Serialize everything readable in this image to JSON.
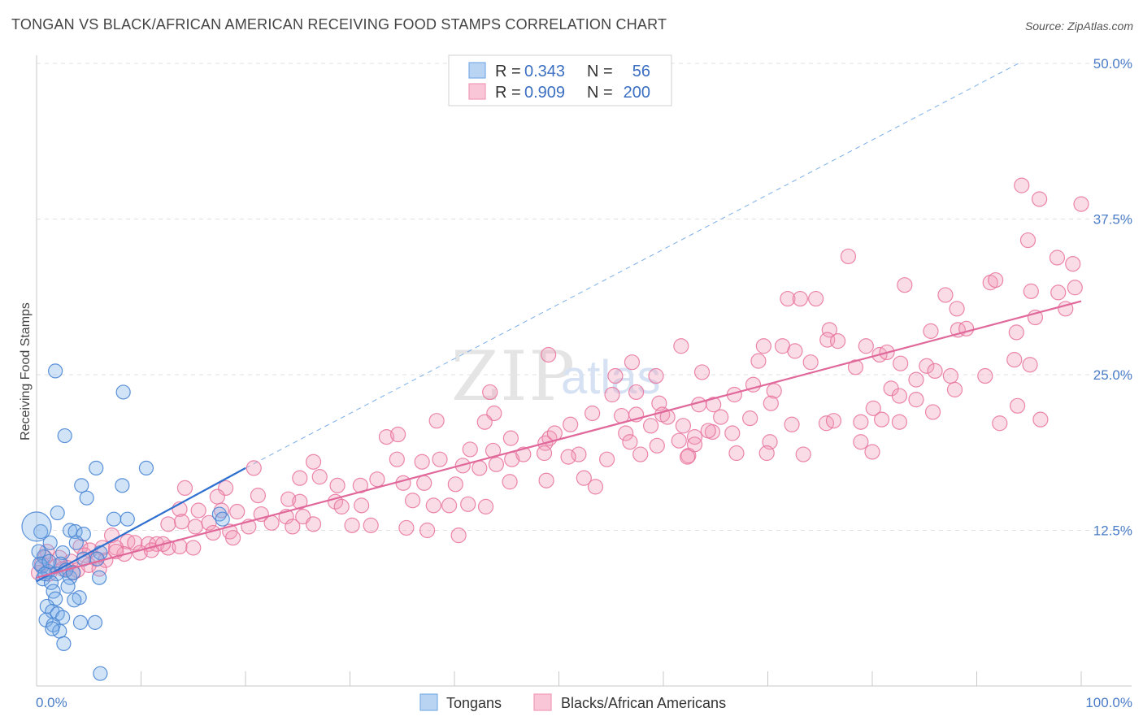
{
  "title": "TONGAN VS BLACK/AFRICAN AMERICAN RECEIVING FOOD STAMPS CORRELATION CHART",
  "source": "Source: ZipAtlas.com",
  "watermark": {
    "zip": "ZIP",
    "atlas": "atlas"
  },
  "legend": {
    "rows": [
      {
        "r_label": "R =",
        "r_value": "0.343",
        "n_label": "N =",
        "n_value": "56",
        "color": "#7aaee8"
      },
      {
        "r_label": "R =",
        "r_value": "0.909",
        "n_label": "N =",
        "n_value": "200",
        "color": "#f19ab8"
      }
    ]
  },
  "bottom_legend": [
    {
      "label": "Tongans",
      "color": "#7aaee8"
    },
    {
      "label": "Blacks/African Americans",
      "color": "#f19ab8"
    }
  ],
  "colors": {
    "blue": "#4a86d4",
    "pink": "#e8729c",
    "blue_line": "#2e6fd0",
    "pink_line": "#e0689a",
    "grid": "#e0e0e0"
  },
  "chart_data": {
    "type": "scatter",
    "ylabel": "Receiving Food Stamps",
    "xlabel": "",
    "xlim": [
      0,
      100
    ],
    "ylim": [
      0,
      50
    ],
    "x_ticks": [
      "0.0%",
      "100.0%"
    ],
    "y_ticks": [
      {
        "value": 12.5,
        "label": "12.5%"
      },
      {
        "value": 25,
        "label": "25.0%"
      },
      {
        "value": 37.5,
        "label": "37.5%"
      },
      {
        "value": 50,
        "label": "50.0%"
      }
    ],
    "grid": true,
    "legend_position": "top-center",
    "series": [
      {
        "name": "Tongans",
        "R": 0.343,
        "N": 56,
        "trend": {
          "x": [
            0,
            20
          ],
          "y": [
            8.4,
            17.5
          ],
          "extended_y_at_x_94": 50
        },
        "points": [
          [
            1.8,
            25.3
          ],
          [
            8.3,
            23.6
          ],
          [
            2.7,
            20.1
          ],
          [
            5.7,
            17.5
          ],
          [
            10.5,
            17.5
          ],
          [
            4.3,
            16.1
          ],
          [
            8.2,
            16.1
          ],
          [
            4.8,
            15.1
          ],
          [
            2.0,
            13.9
          ],
          [
            7.4,
            13.4
          ],
          [
            8.7,
            13.4
          ],
          [
            17.5,
            13.8
          ],
          [
            3.2,
            12.5
          ],
          [
            3.7,
            12.4
          ],
          [
            4.5,
            12.2
          ],
          [
            0.4,
            12.4
          ],
          [
            1.3,
            11.5
          ],
          [
            3.8,
            11.5
          ],
          [
            2.5,
            10.7
          ],
          [
            6.1,
            10.7
          ],
          [
            0.7,
            10.4
          ],
          [
            4.5,
            10.2
          ],
          [
            5.8,
            10.2
          ],
          [
            2.3,
            9.8
          ],
          [
            0.5,
            9.6
          ],
          [
            1.1,
            9.2
          ],
          [
            1.9,
            9.0
          ],
          [
            3.2,
            8.7
          ],
          [
            6.0,
            8.7
          ],
          [
            0.6,
            8.6
          ],
          [
            1.4,
            8.3
          ],
          [
            3.0,
            8.0
          ],
          [
            1.6,
            7.6
          ],
          [
            4.1,
            7.1
          ],
          [
            1.8,
            7.0
          ],
          [
            3.6,
            6.9
          ],
          [
            1.0,
            6.4
          ],
          [
            1.5,
            6.0
          ],
          [
            2.0,
            5.8
          ],
          [
            2.5,
            5.5
          ],
          [
            0.9,
            5.3
          ],
          [
            4.2,
            5.1
          ],
          [
            5.6,
            5.1
          ],
          [
            1.6,
            4.9
          ],
          [
            2.2,
            4.4
          ],
          [
            1.5,
            4.6
          ],
          [
            2.6,
            3.4
          ],
          [
            6.1,
            1.0
          ],
          [
            0.3,
            9.8
          ],
          [
            0.8,
            9.0
          ],
          [
            2.8,
            9.3
          ],
          [
            1.2,
            10.0
          ],
          [
            3.5,
            9.1
          ],
          [
            17.8,
            13.4
          ],
          [
            0.2,
            10.8
          ],
          [
            0.0,
            12.8
          ]
        ]
      },
      {
        "name": "Blacks/African Americans",
        "R": 0.909,
        "N": 200,
        "trend": {
          "x": [
            0,
            100
          ],
          "y": [
            8.7,
            30.9
          ]
        },
        "points": [
          [
            94.3,
            40.2
          ],
          [
            96.0,
            39.1
          ],
          [
            100.0,
            38.7
          ],
          [
            94.9,
            35.8
          ],
          [
            97.7,
            34.4
          ],
          [
            99.2,
            33.9
          ],
          [
            77.7,
            34.5
          ],
          [
            91.3,
            32.4
          ],
          [
            91.8,
            32.6
          ],
          [
            95.2,
            31.7
          ],
          [
            97.8,
            31.6
          ],
          [
            99.4,
            32.0
          ],
          [
            83.1,
            32.2
          ],
          [
            87.0,
            31.4
          ],
          [
            71.9,
            31.1
          ],
          [
            73.1,
            31.1
          ],
          [
            74.6,
            31.1
          ],
          [
            88.1,
            30.3
          ],
          [
            95.6,
            29.6
          ],
          [
            98.5,
            30.3
          ],
          [
            75.9,
            28.6
          ],
          [
            85.6,
            28.5
          ],
          [
            88.2,
            28.6
          ],
          [
            89.0,
            28.7
          ],
          [
            93.8,
            28.4
          ],
          [
            75.7,
            27.8
          ],
          [
            76.7,
            27.7
          ],
          [
            79.4,
            27.3
          ],
          [
            61.7,
            27.3
          ],
          [
            69.6,
            27.3
          ],
          [
            71.4,
            27.3
          ],
          [
            72.6,
            26.9
          ],
          [
            80.7,
            26.6
          ],
          [
            81.4,
            26.8
          ],
          [
            49.0,
            26.6
          ],
          [
            57.0,
            26.0
          ],
          [
            69.1,
            26.1
          ],
          [
            74.1,
            26.0
          ],
          [
            78.4,
            25.6
          ],
          [
            82.7,
            25.9
          ],
          [
            85.2,
            25.7
          ],
          [
            86.0,
            25.3
          ],
          [
            93.6,
            26.2
          ],
          [
            95.1,
            25.8
          ],
          [
            63.7,
            25.2
          ],
          [
            55.4,
            24.9
          ],
          [
            59.3,
            24.9
          ],
          [
            68.6,
            24.2
          ],
          [
            84.2,
            24.6
          ],
          [
            87.5,
            24.9
          ],
          [
            90.8,
            24.9
          ],
          [
            43.4,
            23.6
          ],
          [
            55.1,
            23.4
          ],
          [
            57.4,
            23.6
          ],
          [
            66.8,
            23.4
          ],
          [
            70.6,
            23.7
          ],
          [
            81.8,
            23.9
          ],
          [
            82.6,
            23.3
          ],
          [
            87.9,
            23.8
          ],
          [
            59.6,
            22.7
          ],
          [
            63.4,
            22.6
          ],
          [
            64.8,
            22.6
          ],
          [
            70.3,
            22.7
          ],
          [
            80.1,
            22.3
          ],
          [
            84.2,
            23.0
          ],
          [
            85.8,
            22.0
          ],
          [
            93.9,
            22.5
          ],
          [
            53.2,
            21.9
          ],
          [
            59.9,
            21.8
          ],
          [
            60.4,
            21.6
          ],
          [
            65.5,
            21.6
          ],
          [
            68.3,
            21.5
          ],
          [
            75.6,
            21.1
          ],
          [
            80.9,
            21.4
          ],
          [
            92.2,
            21.1
          ],
          [
            96.1,
            21.4
          ],
          [
            43.8,
            21.9
          ],
          [
            56.0,
            21.7
          ],
          [
            57.4,
            21.8
          ],
          [
            58.8,
            20.9
          ],
          [
            61.9,
            20.9
          ],
          [
            64.7,
            20.4
          ],
          [
            72.3,
            21.0
          ],
          [
            76.3,
            21.3
          ],
          [
            78.9,
            21.2
          ],
          [
            82.6,
            21.2
          ],
          [
            38.3,
            21.3
          ],
          [
            42.9,
            21.2
          ],
          [
            51.1,
            21.0
          ],
          [
            56.4,
            20.3
          ],
          [
            63.0,
            20.0
          ],
          [
            64.3,
            20.5
          ],
          [
            66.6,
            20.3
          ],
          [
            33.5,
            20.0
          ],
          [
            34.6,
            20.2
          ],
          [
            45.4,
            19.9
          ],
          [
            48.7,
            19.5
          ],
          [
            49.1,
            19.9
          ],
          [
            49.6,
            20.3
          ],
          [
            56.8,
            19.6
          ],
          [
            61.5,
            19.7
          ],
          [
            63.0,
            19.4
          ],
          [
            70.2,
            19.6
          ],
          [
            78.9,
            19.6
          ],
          [
            41.5,
            19.0
          ],
          [
            43.7,
            18.9
          ],
          [
            45.5,
            18.2
          ],
          [
            46.6,
            18.6
          ],
          [
            48.6,
            18.7
          ],
          [
            51.9,
            18.6
          ],
          [
            62.4,
            18.5
          ],
          [
            69.9,
            18.7
          ],
          [
            80.0,
            18.8
          ],
          [
            26.5,
            18.0
          ],
          [
            34.5,
            18.2
          ],
          [
            36.9,
            18.0
          ],
          [
            38.6,
            18.2
          ],
          [
            40.8,
            17.7
          ],
          [
            42.4,
            17.5
          ],
          [
            44.0,
            17.8
          ],
          [
            50.9,
            18.4
          ],
          [
            54.6,
            18.2
          ],
          [
            57.8,
            18.6
          ],
          [
            59.4,
            19.3
          ],
          [
            62.3,
            18.4
          ],
          [
            67.0,
            18.7
          ],
          [
            73.4,
            18.6
          ],
          [
            20.8,
            17.5
          ],
          [
            25.2,
            16.7
          ],
          [
            27.1,
            16.8
          ],
          [
            28.8,
            16.1
          ],
          [
            31.0,
            16.1
          ],
          [
            32.6,
            16.6
          ],
          [
            35.1,
            16.3
          ],
          [
            37.1,
            16.3
          ],
          [
            40.1,
            16.2
          ],
          [
            45.3,
            16.4
          ],
          [
            48.8,
            16.5
          ],
          [
            52.4,
            16.7
          ],
          [
            53.5,
            16.0
          ],
          [
            18.1,
            15.9
          ],
          [
            14.2,
            15.9
          ],
          [
            17.3,
            15.2
          ],
          [
            21.2,
            15.3
          ],
          [
            24.1,
            15.0
          ],
          [
            25.2,
            14.8
          ],
          [
            28.6,
            14.8
          ],
          [
            29.2,
            14.4
          ],
          [
            31.1,
            14.5
          ],
          [
            36.0,
            14.9
          ],
          [
            38.0,
            14.5
          ],
          [
            39.5,
            14.5
          ],
          [
            41.3,
            14.6
          ],
          [
            43.0,
            14.4
          ],
          [
            13.7,
            14.2
          ],
          [
            15.5,
            14.1
          ],
          [
            17.7,
            14.1
          ],
          [
            19.2,
            14.0
          ],
          [
            21.5,
            13.8
          ],
          [
            23.9,
            13.6
          ],
          [
            25.5,
            13.6
          ],
          [
            26.5,
            13.0
          ],
          [
            30.2,
            12.9
          ],
          [
            32.0,
            12.9
          ],
          [
            35.4,
            12.7
          ],
          [
            37.4,
            12.5
          ],
          [
            40.4,
            12.1
          ],
          [
            12.6,
            13.0
          ],
          [
            13.9,
            13.2
          ],
          [
            15.2,
            12.8
          ],
          [
            16.5,
            13.1
          ],
          [
            18.5,
            12.4
          ],
          [
            20.3,
            12.8
          ],
          [
            22.5,
            13.1
          ],
          [
            24.5,
            12.8
          ],
          [
            7.2,
            12.1
          ],
          [
            8.7,
            11.6
          ],
          [
            9.4,
            11.5
          ],
          [
            10.7,
            11.4
          ],
          [
            11.5,
            11.4
          ],
          [
            12.6,
            11.1
          ],
          [
            13.7,
            11.2
          ],
          [
            15.0,
            11.1
          ],
          [
            16.9,
            12.3
          ],
          [
            18.8,
            11.9
          ],
          [
            4.2,
            11.2
          ],
          [
            5.1,
            10.9
          ],
          [
            6.3,
            11.1
          ],
          [
            7.6,
            11.1
          ],
          [
            8.4,
            10.6
          ],
          [
            9.9,
            10.7
          ],
          [
            11.0,
            10.9
          ],
          [
            12.1,
            11.4
          ],
          [
            1.0,
            10.8
          ],
          [
            2.2,
            10.3
          ],
          [
            3.3,
            10.0
          ],
          [
            4.6,
            10.5
          ],
          [
            5.7,
            10.2
          ],
          [
            6.6,
            10.1
          ],
          [
            7.6,
            10.8
          ],
          [
            0.5,
            9.8
          ],
          [
            1.8,
            9.6
          ],
          [
            2.9,
            9.5
          ],
          [
            3.9,
            9.3
          ],
          [
            5.0,
            9.7
          ],
          [
            6.0,
            9.4
          ],
          [
            0.2,
            9.1
          ],
          [
            1.2,
            9.0
          ],
          [
            2.5,
            9.4
          ],
          [
            3.5,
            9.1
          ],
          [
            0.8,
            10.3
          ]
        ]
      }
    ]
  }
}
